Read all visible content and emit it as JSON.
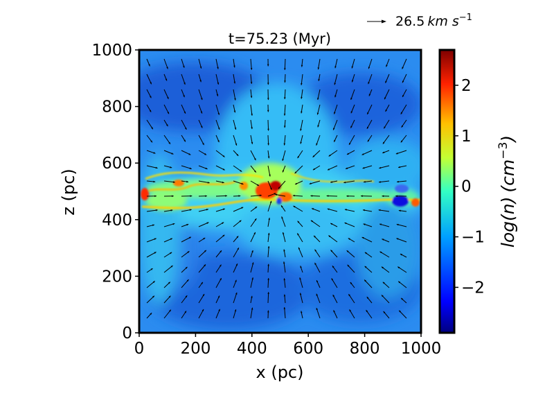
{
  "chart_data": {
    "type": "heatmap",
    "title": "t=75.23 (Myr)",
    "xlabel": "x (pc)",
    "ylabel": "z (pc)",
    "xlim": [
      0,
      1000
    ],
    "ylim": [
      0,
      1000
    ],
    "x_ticks": [
      "0",
      "200",
      "400",
      "600",
      "800",
      "1000"
    ],
    "y_ticks": [
      "0",
      "200",
      "400",
      "600",
      "800",
      "1000"
    ],
    "colorbar": {
      "label_main": "log(n)",
      "label_unit": "(cm",
      "label_exp": "−3",
      "label_close": ")",
      "range": [
        -2.9,
        2.7
      ],
      "ticks": [
        "2",
        "1",
        "0",
        "−1",
        "−2"
      ],
      "colormap": "jet"
    },
    "quiver_key": {
      "value": "26.5",
      "unit": "km s",
      "unit_exp": "−1"
    },
    "field_description": "gas density slice with velocity arrows; dense filaments near z~450-500 pc, dense clump near x~450-500 pc"
  },
  "colors": {
    "jet_low": "#00007f",
    "jet_high": "#7f0000",
    "arrow": "#000000"
  }
}
